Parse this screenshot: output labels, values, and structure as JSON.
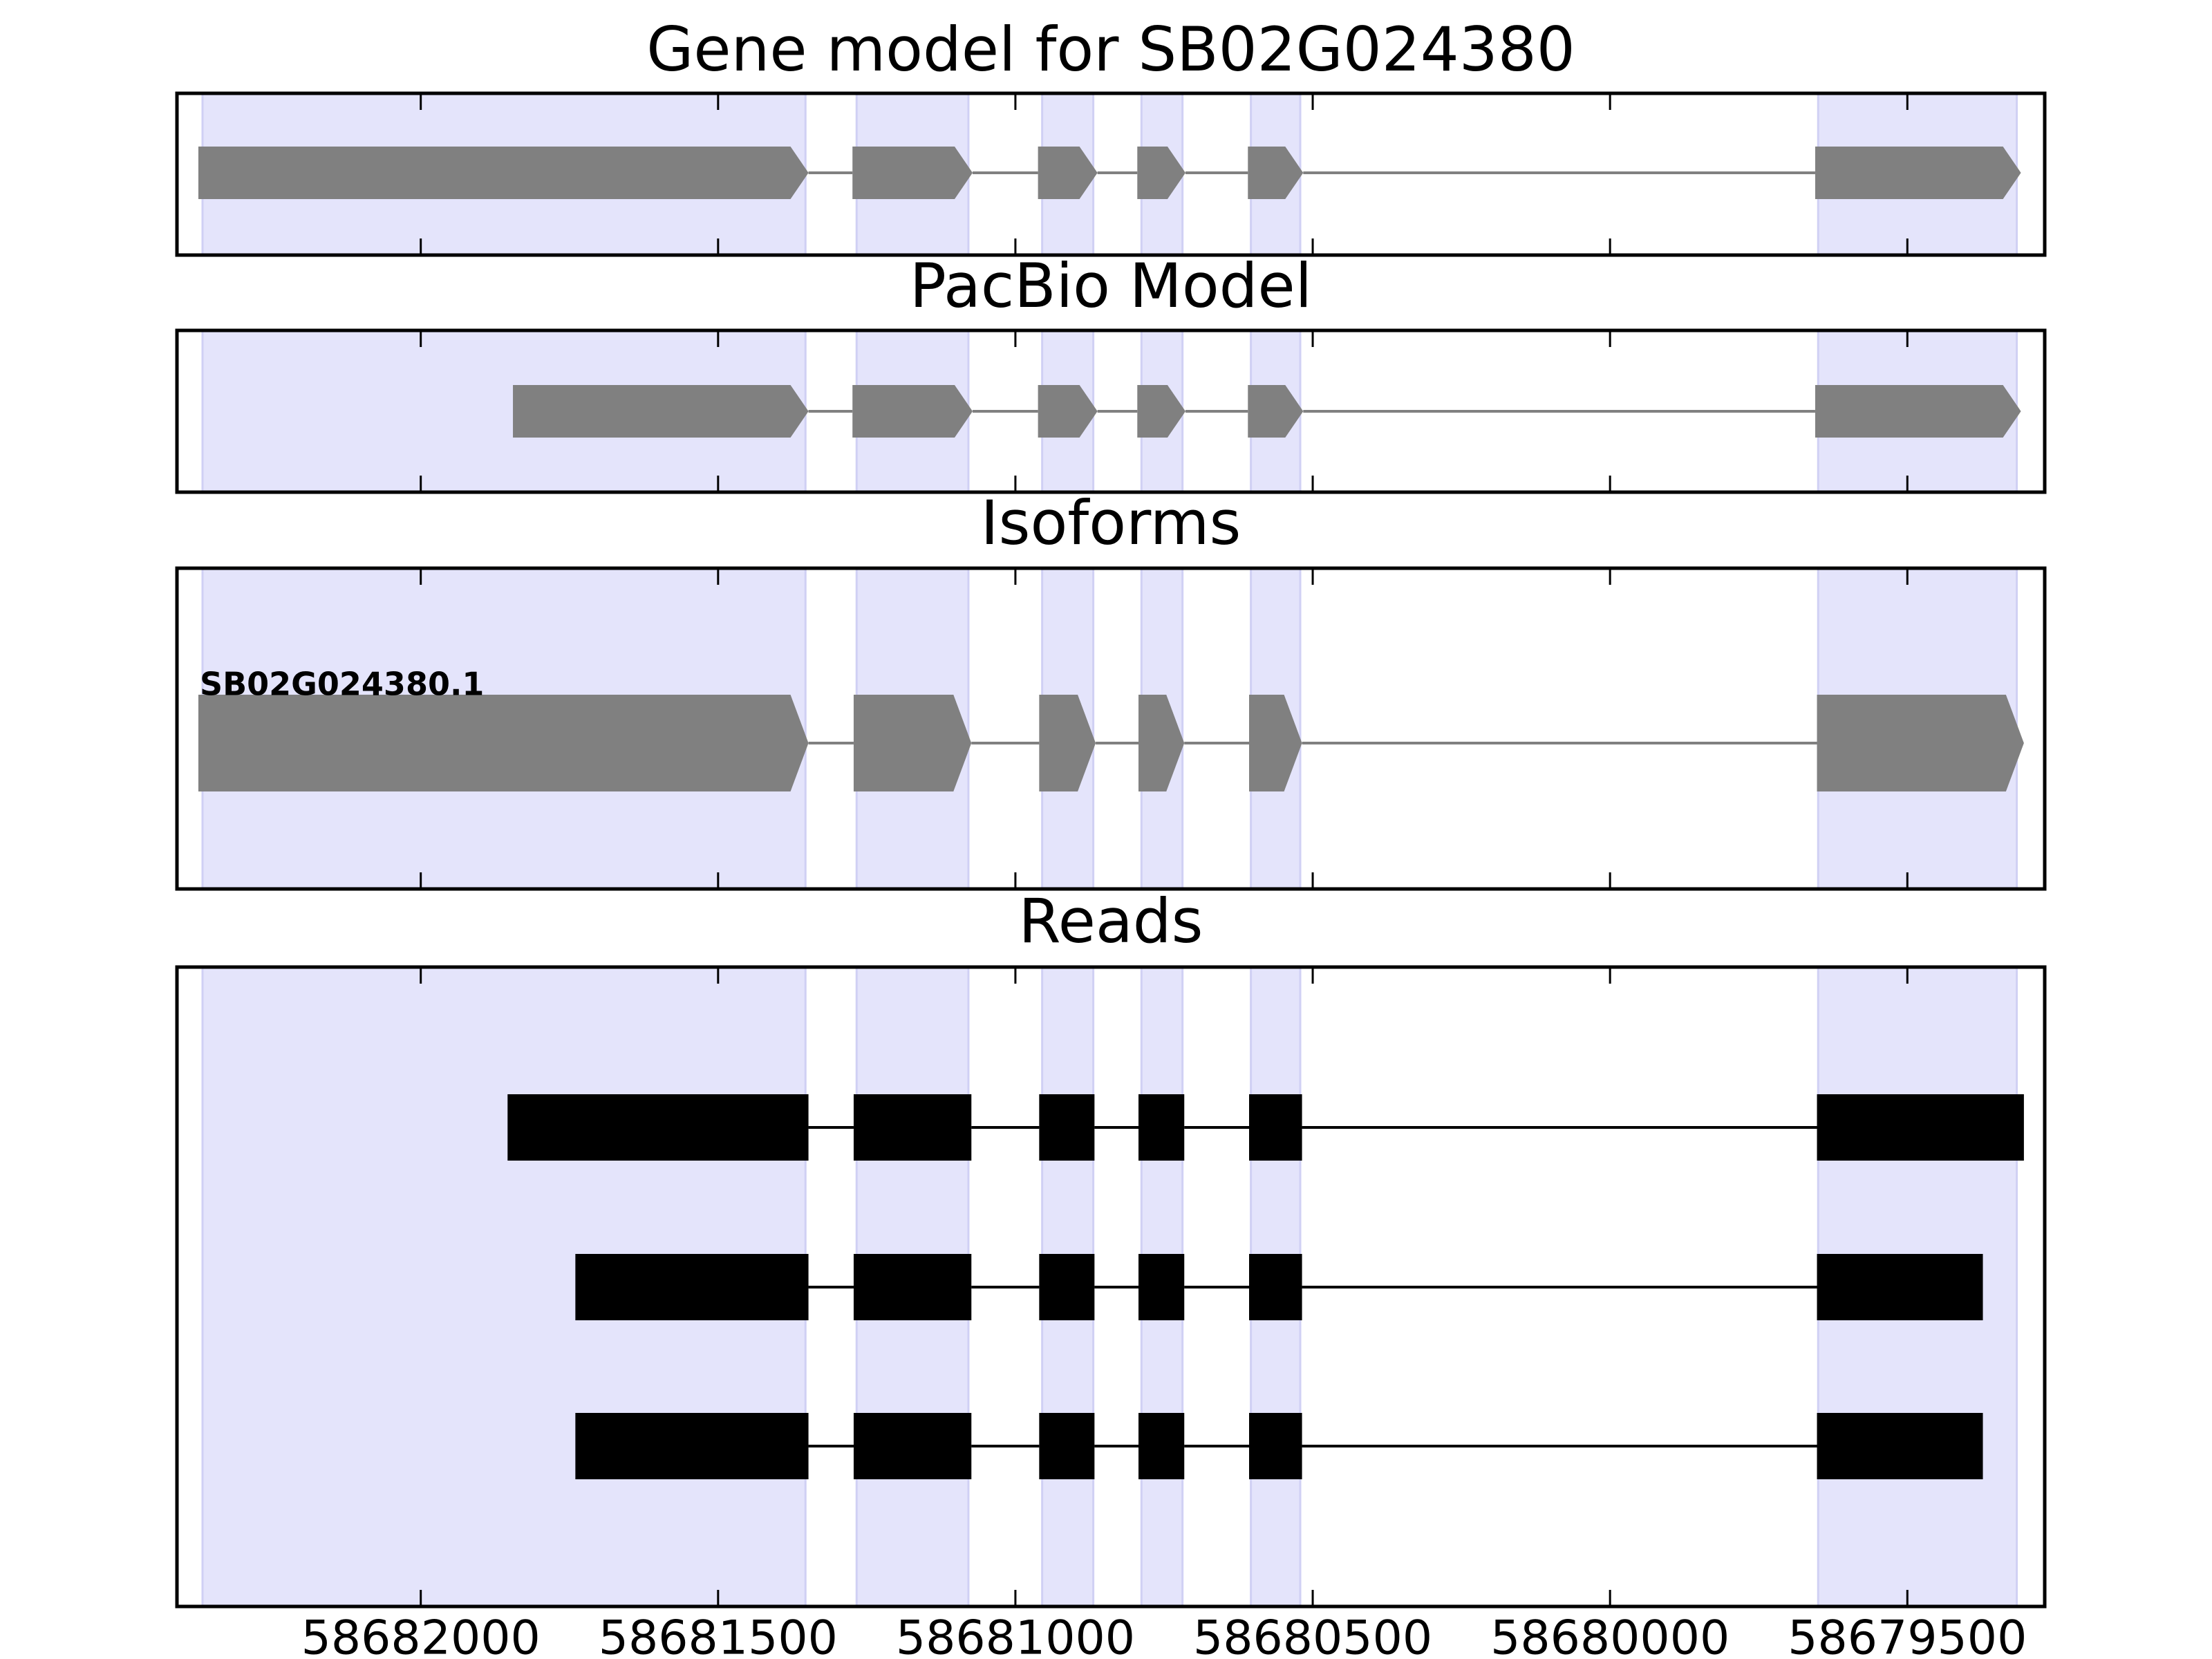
{
  "chart_data": [
    {
      "type": "gene",
      "title": "Gene model for SB02G024380",
      "color": "#808080",
      "xlim": [
        58682410,
        58679269
      ],
      "xticks": [
        58682000,
        58681500,
        58681000,
        58680500,
        58680000,
        58679500
      ],
      "shading": {
        "color": "#e4e4fb",
        "regions": [
          [
            58682367,
            58681353
          ],
          [
            58681267,
            58681079
          ],
          [
            58680955,
            58680869
          ],
          [
            58680788,
            58680719
          ],
          [
            58680604,
            58680521
          ],
          [
            58679650,
            58679316
          ]
        ]
      },
      "features": [
        {
          "exons": [
            [
              58682374,
              58681348
            ],
            [
              58681274,
              58681072
            ],
            [
              58680962,
              58680862
            ],
            [
              58680795,
              58680714
            ],
            [
              58680609,
              58680516
            ],
            [
              58679655,
              58679309
            ]
          ]
        }
      ]
    },
    {
      "type": "gene",
      "title": "PacBio Model",
      "color": "#808080",
      "xlim": [
        58682410,
        58679269
      ],
      "xticks": [
        58682000,
        58681500,
        58681000,
        58680500,
        58680000,
        58679500
      ],
      "shading": {
        "color": "#e4e4fb",
        "regions": [
          [
            58682367,
            58681353
          ],
          [
            58681267,
            58681079
          ],
          [
            58680955,
            58680869
          ],
          [
            58680788,
            58680719
          ],
          [
            58680604,
            58680521
          ],
          [
            58679650,
            58679316
          ]
        ]
      },
      "features": [
        {
          "exons": [
            [
              58681845,
              58681348
            ],
            [
              58681274,
              58681072
            ],
            [
              58680962,
              58680862
            ],
            [
              58680795,
              58680714
            ],
            [
              58680609,
              58680516
            ],
            [
              58679655,
              58679309
            ]
          ]
        }
      ]
    },
    {
      "type": "gene",
      "title": "Isoforms",
      "color": "#808080",
      "xlim": [
        58682410,
        58679269
      ],
      "xticks": [
        58682000,
        58681500,
        58681000,
        58680500,
        58680000,
        58679500
      ],
      "shading": {
        "color": "#e4e4fb",
        "regions": [
          [
            58682367,
            58681353
          ],
          [
            58681267,
            58681079
          ],
          [
            58680955,
            58680869
          ],
          [
            58680788,
            58680719
          ],
          [
            58680604,
            58680521
          ],
          [
            58679650,
            58679316
          ]
        ]
      },
      "features": [
        {
          "label": "SB02G024380.1",
          "exons": [
            [
              58682374,
              58681348
            ],
            [
              58681272,
              58681074
            ],
            [
              58680960,
              58680865
            ],
            [
              58680793,
              58680716
            ],
            [
              58680607,
              58680518
            ],
            [
              58679652,
              58679304
            ]
          ]
        }
      ]
    },
    {
      "type": "reads",
      "title": "Reads",
      "color": "#000000",
      "xlim": [
        58682410,
        58679269
      ],
      "xticks": [
        58682000,
        58681500,
        58681000,
        58680500,
        58680000,
        58679500
      ],
      "shading": {
        "color": "#e4e4fb",
        "regions": [
          [
            58682367,
            58681353
          ],
          [
            58681267,
            58681079
          ],
          [
            58680955,
            58680869
          ],
          [
            58680788,
            58680719
          ],
          [
            58680604,
            58680521
          ],
          [
            58679650,
            58679316
          ]
        ]
      },
      "features": [
        {
          "exons": [
            [
              58681854,
              58681348
            ],
            [
              58681272,
              58681074
            ],
            [
              58680960,
              58680867
            ],
            [
              58680793,
              58680716
            ],
            [
              58680607,
              58680518
            ],
            [
              58679652,
              58679304
            ]
          ]
        },
        {
          "exons": [
            [
              58681740,
              58681348
            ],
            [
              58681272,
              58681074
            ],
            [
              58680960,
              58680867
            ],
            [
              58680793,
              58680716
            ],
            [
              58680607,
              58680518
            ],
            [
              58679652,
              58679373
            ]
          ]
        },
        {
          "exons": [
            [
              58681740,
              58681348
            ],
            [
              58681272,
              58681074
            ],
            [
              58680960,
              58680867
            ],
            [
              58680793,
              58680716
            ],
            [
              58680607,
              58680518
            ],
            [
              58679652,
              58679373
            ]
          ]
        }
      ]
    }
  ]
}
